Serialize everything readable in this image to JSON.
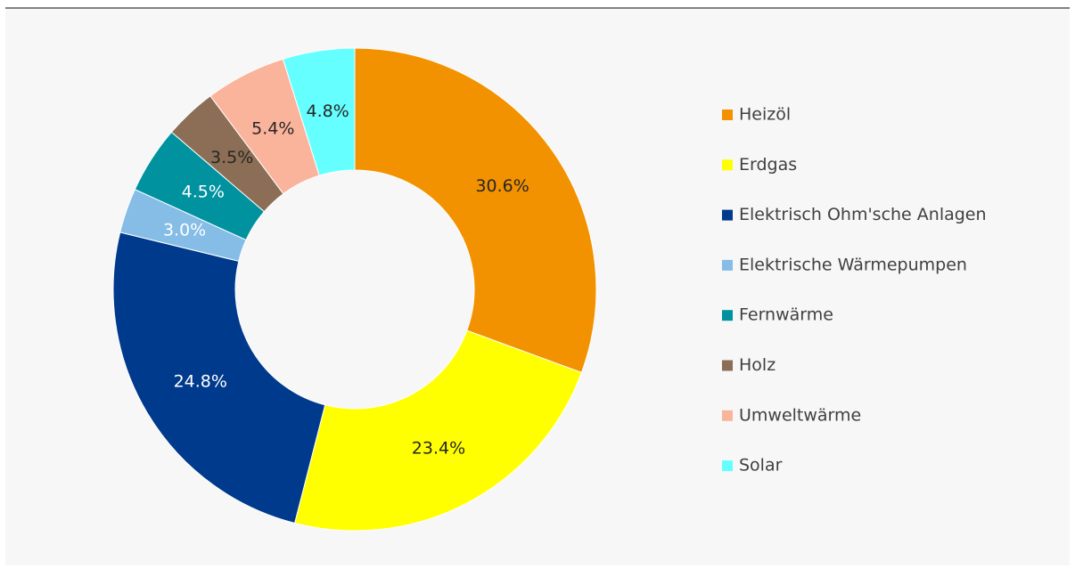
{
  "chart_data": {
    "type": "donut",
    "categories": [
      "Heizöl",
      "Erdgas",
      "Elektrisch Ohm'sche Anlagen",
      "Elektrische Wärmepumpen",
      "Fernwärme",
      "Holz",
      "Umweltwärme",
      "Solar"
    ],
    "values": [
      30.6,
      23.4,
      24.8,
      3.0,
      4.5,
      3.5,
      5.4,
      4.8
    ],
    "value_labels": [
      "30.6%",
      "23.4%",
      "24.8%",
      "3.0%",
      "4.5%",
      "3.5%",
      "5.4%",
      "4.8%"
    ],
    "colors": [
      "#f39200",
      "#ffff00",
      "#003a8c",
      "#85bde6",
      "#00929f",
      "#8b6e55",
      "#fbb49c",
      "#66ffff"
    ],
    "legend": "right"
  }
}
